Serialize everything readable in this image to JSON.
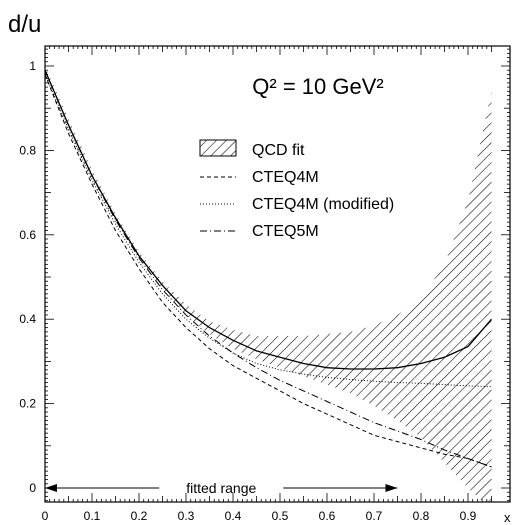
{
  "chart_data": {
    "type": "line",
    "title": "Q² = 10 GeV²",
    "ylabel": "d/u",
    "xlabel": "x",
    "xlim": [
      0,
      0.95
    ],
    "ylim": [
      -0.05,
      1.05
    ],
    "xticks": [
      "0",
      "0.1",
      "0.2",
      "0.3",
      "0.4",
      "0.5",
      "0.6",
      "0.7",
      "0.8",
      "0.9"
    ],
    "yticks": [
      "0",
      "0.2",
      "0.4",
      "0.6",
      "0.8",
      "1"
    ],
    "legend_position": "right",
    "legend": [
      {
        "label": "QCD fit",
        "style": "hatched band"
      },
      {
        "label": "CTEQ4M",
        "style": "dashed"
      },
      {
        "label": "CTEQ4M (modified)",
        "style": "dotted"
      },
      {
        "label": "CTEQ5M",
        "style": "dash-dot"
      }
    ],
    "annotation": {
      "text": "fitted range",
      "x_start": 0.0,
      "x_end": 0.75,
      "y": 0.0
    },
    "series": [
      {
        "name": "QCD fit",
        "x": [
          0.0,
          0.05,
          0.1,
          0.15,
          0.2,
          0.25,
          0.3,
          0.35,
          0.4,
          0.45,
          0.5,
          0.55,
          0.6,
          0.65,
          0.7,
          0.75,
          0.8,
          0.85,
          0.9,
          0.95
        ],
        "y": [
          0.99,
          0.86,
          0.74,
          0.64,
          0.55,
          0.48,
          0.42,
          0.38,
          0.35,
          0.325,
          0.31,
          0.295,
          0.285,
          0.282,
          0.282,
          0.285,
          0.295,
          0.31,
          0.335,
          0.4
        ],
        "upper": [
          1.0,
          0.875,
          0.755,
          0.65,
          0.56,
          0.49,
          0.435,
          0.395,
          0.375,
          0.36,
          0.36,
          0.36,
          0.365,
          0.37,
          0.385,
          0.41,
          0.45,
          0.53,
          0.68,
          0.94
        ],
        "lower": [
          0.98,
          0.845,
          0.725,
          0.63,
          0.545,
          0.47,
          0.41,
          0.365,
          0.33,
          0.305,
          0.285,
          0.265,
          0.245,
          0.225,
          0.195,
          0.16,
          0.12,
          0.06,
          0.0,
          -0.05
        ]
      },
      {
        "name": "CTEQ4M",
        "x": [
          0.0,
          0.05,
          0.1,
          0.15,
          0.2,
          0.25,
          0.3,
          0.35,
          0.4,
          0.45,
          0.5,
          0.55,
          0.6,
          0.65,
          0.7,
          0.75,
          0.8,
          0.85,
          0.9,
          0.95
        ],
        "y": [
          0.98,
          0.84,
          0.72,
          0.61,
          0.52,
          0.44,
          0.38,
          0.33,
          0.29,
          0.26,
          0.23,
          0.2,
          0.175,
          0.15,
          0.125,
          0.11,
          0.095,
          0.08,
          0.07,
          0.05
        ]
      },
      {
        "name": "CTEQ4M (modified)",
        "x": [
          0.0,
          0.05,
          0.1,
          0.15,
          0.2,
          0.25,
          0.3,
          0.35,
          0.4,
          0.45,
          0.5,
          0.55,
          0.6,
          0.65,
          0.7,
          0.75,
          0.8,
          0.85,
          0.9,
          0.95
        ],
        "y": [
          0.98,
          0.85,
          0.73,
          0.625,
          0.535,
          0.46,
          0.4,
          0.355,
          0.32,
          0.295,
          0.28,
          0.27,
          0.262,
          0.257,
          0.253,
          0.25,
          0.248,
          0.245,
          0.242,
          0.24
        ]
      },
      {
        "name": "CTEQ5M",
        "x": [
          0.0,
          0.05,
          0.1,
          0.15,
          0.2,
          0.25,
          0.3,
          0.35,
          0.4,
          0.45,
          0.5,
          0.55,
          0.6,
          0.65,
          0.7,
          0.75,
          0.8,
          0.85,
          0.9,
          0.95
        ],
        "y": [
          0.99,
          0.86,
          0.74,
          0.635,
          0.545,
          0.47,
          0.41,
          0.36,
          0.32,
          0.285,
          0.255,
          0.23,
          0.205,
          0.18,
          0.155,
          0.135,
          0.115,
          0.09,
          0.07,
          0.05
        ]
      }
    ]
  }
}
